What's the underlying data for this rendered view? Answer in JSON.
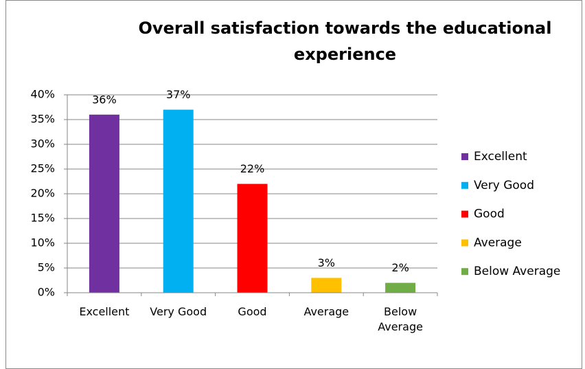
{
  "chart_data": {
    "type": "bar",
    "title": "Overall satisfaction towards the educational experience",
    "categories": [
      "Excellent",
      "Very Good",
      "Good",
      "Average",
      "Below Average"
    ],
    "values": [
      36,
      37,
      22,
      3,
      2
    ],
    "value_labels": [
      "36%",
      "37%",
      "22%",
      "3%",
      "2%"
    ],
    "colors": [
      "#7030a0",
      "#00b0f0",
      "#ff0000",
      "#ffc000",
      "#70ad47"
    ],
    "ylim": [
      0,
      40
    ],
    "yticks": [
      {
        "value": 0,
        "label": "0%"
      },
      {
        "value": 5,
        "label": "5%"
      },
      {
        "value": 10,
        "label": "10%"
      },
      {
        "value": 15,
        "label": "15%"
      },
      {
        "value": 20,
        "label": "20%"
      },
      {
        "value": 25,
        "label": "25%"
      },
      {
        "value": 30,
        "label": "30%"
      },
      {
        "value": 35,
        "label": "35%"
      },
      {
        "value": 40,
        "label": "40%"
      }
    ],
    "grid": true,
    "legend": "right"
  }
}
